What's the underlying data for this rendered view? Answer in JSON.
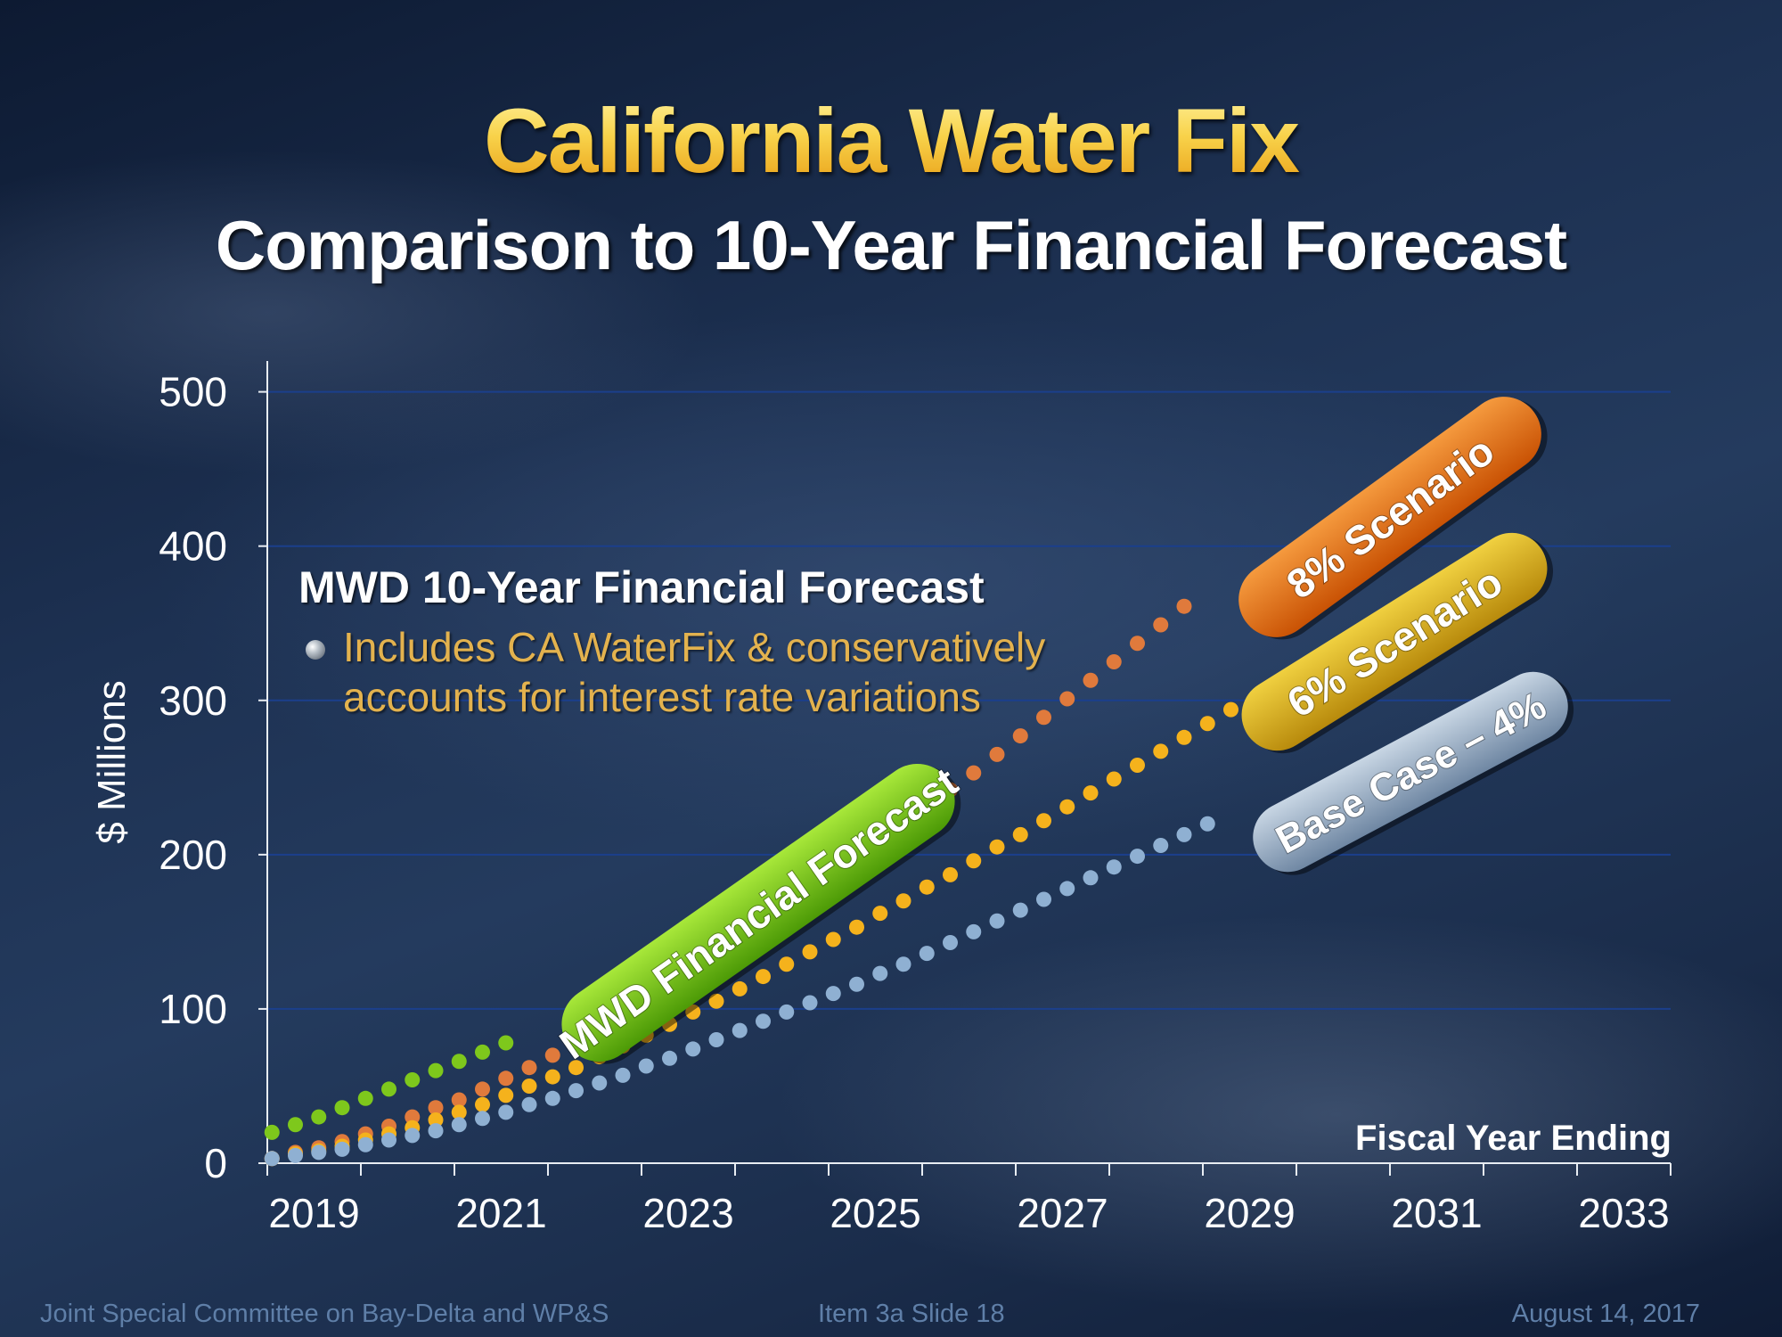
{
  "slide": {
    "title": "California Water Fix",
    "subtitle": "Comparison to 10-Year Financial Forecast",
    "annotation_heading": "MWD 10-Year Financial Forecast",
    "annotation_bullet": "Includes CA WaterFix & conservatively accounts for interest rate variations",
    "footer_left": "Joint Special Committee on Bay-Delta and WP&S",
    "footer_center": "Item 3a  Slide 18",
    "footer_right": "August 14, 2017"
  },
  "chart_data": {
    "type": "scatter",
    "ylabel": "$ Millions",
    "xlabel": "Fiscal Year Ending",
    "ylim": [
      0,
      520
    ],
    "xlim": [
      2018.5,
      2033.5
    ],
    "yticks": [
      0,
      100,
      200,
      300,
      400,
      500
    ],
    "xtick_labels": [
      "2019",
      "2021",
      "2023",
      "2025",
      "2027",
      "2029",
      "2031",
      "2033"
    ],
    "xtick_values": [
      2019,
      2021,
      2023,
      2025,
      2027,
      2029,
      2031,
      2033
    ],
    "grid": true,
    "series": [
      {
        "name": "8% Scenario",
        "color": "#e07a3c",
        "label_color": "#e46a12",
        "x_start": 2018.55,
        "x_step": 0.25,
        "values": [
          3,
          7,
          10,
          14,
          19,
          24,
          30,
          36,
          41,
          48,
          55,
          62,
          70,
          78,
          87,
          96,
          105,
          115,
          124,
          134,
          144,
          154,
          165,
          175,
          186,
          197,
          208,
          219,
          230,
          242,
          253,
          265,
          277,
          289,
          301,
          313,
          325,
          337,
          349,
          361
        ]
      },
      {
        "name": "6% Scenario",
        "color": "#f5b21c",
        "label_color": "#d9a81a",
        "x_start": 2018.55,
        "x_step": 0.25,
        "values": [
          3,
          6,
          8,
          11,
          15,
          19,
          23,
          28,
          33,
          38,
          44,
          50,
          56,
          62,
          69,
          76,
          83,
          90,
          98,
          105,
          113,
          121,
          129,
          137,
          145,
          153,
          162,
          170,
          179,
          187,
          196,
          205,
          213,
          222,
          231,
          240,
          249,
          258,
          267,
          276,
          285,
          294
        ]
      },
      {
        "name": "Base Case – 4%",
        "color": "#8fb0d2",
        "label_color": "#9aaec8",
        "x_start": 2018.55,
        "x_step": 0.25,
        "values": [
          3,
          5,
          7,
          9,
          12,
          15,
          18,
          21,
          25,
          29,
          33,
          38,
          42,
          47,
          52,
          57,
          63,
          68,
          74,
          80,
          86,
          92,
          98,
          104,
          110,
          116,
          123,
          129,
          136,
          143,
          150,
          157,
          164,
          171,
          178,
          185,
          192,
          199,
          206,
          213,
          220
        ]
      },
      {
        "name": "MWD Financial Forecast",
        "color": "#7ec81c",
        "label_color": "#6cbe12",
        "x_start": 2018.55,
        "x_step": 0.25,
        "values": [
          20,
          25,
          30,
          36,
          42,
          48,
          54,
          60,
          66,
          72,
          78
        ]
      }
    ]
  }
}
